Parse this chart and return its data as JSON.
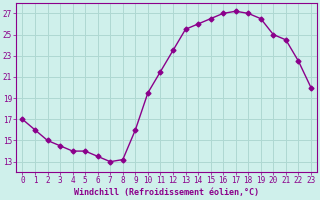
{
  "x": [
    0,
    1,
    2,
    3,
    4,
    5,
    6,
    7,
    8,
    9,
    10,
    11,
    12,
    13,
    14,
    15,
    16,
    17,
    18,
    19,
    20,
    21,
    22,
    23
  ],
  "y": [
    17,
    16,
    15,
    14.5,
    14,
    14,
    13.5,
    13,
    13.2,
    16,
    19.5,
    21.5,
    23.5,
    25.5,
    26,
    26.5,
    27,
    27.2,
    27,
    26.5,
    25,
    24.5,
    22.5,
    20
  ],
  "line_color": "#8B008B",
  "marker": "D",
  "marker_size": 2.5,
  "bg_color": "#cff0eb",
  "grid_color": "#aed8d2",
  "xlabel": "Windchill (Refroidissement éolien,°C)",
  "ylim": [
    12,
    28
  ],
  "xlim": [
    -0.5,
    23.5
  ],
  "yticks": [
    13,
    15,
    17,
    19,
    21,
    23,
    25,
    27
  ],
  "xticks": [
    0,
    1,
    2,
    3,
    4,
    5,
    6,
    7,
    8,
    9,
    10,
    11,
    12,
    13,
    14,
    15,
    16,
    17,
    18,
    19,
    20,
    21,
    22,
    23
  ],
  "tick_color": "#8B008B",
  "label_fontsize": 6.0,
  "tick_fontsize": 5.5,
  "linewidth": 1.0
}
